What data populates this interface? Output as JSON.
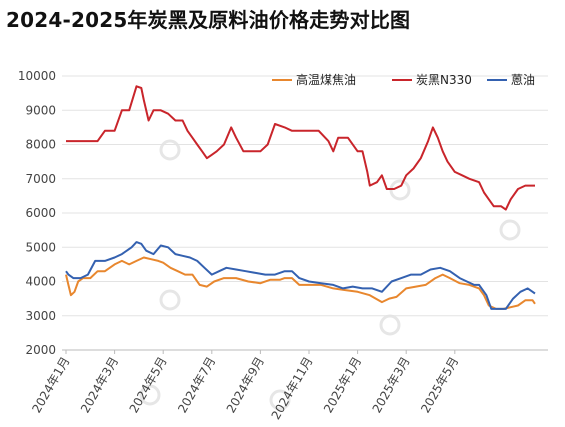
{
  "chart_data": {
    "type": "line",
    "title": "2024-2025年炭黑及原料油价格走势对比图",
    "xlabel": "",
    "ylabel": "",
    "ylim": [
      2000,
      10000
    ],
    "yticks": [
      "2000",
      "3000",
      "4000",
      "5000",
      "6000",
      "7000",
      "8000",
      "9000",
      "10000"
    ],
    "xticks": [
      "2024年1月",
      "2024年3月",
      "2024年5月",
      "2024年7月",
      "2024年9月",
      "2024年11月",
      "2025年1月",
      "2025年3月",
      "2025年5月"
    ],
    "grid": "horizontal",
    "legend_position": "top-right",
    "x_unit": "month index from 2024年1月",
    "series": [
      {
        "name": "高温煤焦油",
        "color": "#e8872e",
        "points": [
          [
            0,
            4200
          ],
          [
            0.1,
            3900
          ],
          [
            0.2,
            3600
          ],
          [
            0.35,
            3700
          ],
          [
            0.5,
            4000
          ],
          [
            0.7,
            4100
          ],
          [
            1.0,
            4100
          ],
          [
            1.3,
            4300
          ],
          [
            1.6,
            4300
          ],
          [
            2.0,
            4500
          ],
          [
            2.3,
            4600
          ],
          [
            2.6,
            4500
          ],
          [
            2.9,
            4600
          ],
          [
            3.2,
            4700
          ],
          [
            3.5,
            4650
          ],
          [
            3.8,
            4600
          ],
          [
            4.0,
            4550
          ],
          [
            4.3,
            4400
          ],
          [
            4.6,
            4300
          ],
          [
            4.9,
            4200
          ],
          [
            5.2,
            4200
          ],
          [
            5.5,
            3900
          ],
          [
            5.8,
            3850
          ],
          [
            6.1,
            4000
          ],
          [
            6.5,
            4100
          ],
          [
            7.0,
            4100
          ],
          [
            7.5,
            4000
          ],
          [
            8.0,
            3950
          ],
          [
            8.4,
            4050
          ],
          [
            8.8,
            4050
          ],
          [
            9.0,
            4100
          ],
          [
            9.3,
            4100
          ],
          [
            9.6,
            3900
          ],
          [
            10.0,
            3900
          ],
          [
            10.5,
            3900
          ],
          [
            11.0,
            3800
          ],
          [
            11.5,
            3750
          ],
          [
            12.0,
            3700
          ],
          [
            12.5,
            3600
          ],
          [
            13.0,
            3400
          ],
          [
            13.3,
            3500
          ],
          [
            13.6,
            3550
          ],
          [
            14.0,
            3800
          ],
          [
            14.4,
            3850
          ],
          [
            14.8,
            3900
          ],
          [
            15.2,
            4100
          ],
          [
            15.5,
            4200
          ],
          [
            15.8,
            4100
          ],
          [
            16.2,
            3950
          ],
          [
            16.6,
            3900
          ],
          [
            17.0,
            3800
          ],
          [
            17.2,
            3600
          ],
          [
            17.4,
            3300
          ],
          [
            17.7,
            3200
          ],
          [
            18.0,
            3200
          ],
          [
            18.3,
            3250
          ],
          [
            18.6,
            3300
          ],
          [
            18.9,
            3450
          ],
          [
            19.2,
            3450
          ],
          [
            19.3,
            3350
          ]
        ]
      },
      {
        "name": "炭黑N330",
        "color": "#c9252b",
        "points": [
          [
            0,
            8100
          ],
          [
            0.5,
            8100
          ],
          [
            1.0,
            8100
          ],
          [
            1.3,
            8100
          ],
          [
            1.6,
            8400
          ],
          [
            2.0,
            8400
          ],
          [
            2.3,
            9000
          ],
          [
            2.6,
            9000
          ],
          [
            2.9,
            9700
          ],
          [
            3.1,
            9650
          ],
          [
            3.2,
            9300
          ],
          [
            3.4,
            8700
          ],
          [
            3.6,
            9000
          ],
          [
            3.9,
            9000
          ],
          [
            4.2,
            8900
          ],
          [
            4.5,
            8700
          ],
          [
            4.8,
            8700
          ],
          [
            5.0,
            8400
          ],
          [
            5.2,
            8200
          ],
          [
            5.4,
            8000
          ],
          [
            5.6,
            7800
          ],
          [
            5.8,
            7600
          ],
          [
            6.0,
            7700
          ],
          [
            6.2,
            7800
          ],
          [
            6.5,
            8000
          ],
          [
            6.8,
            8500
          ],
          [
            7.0,
            8200
          ],
          [
            7.3,
            7800
          ],
          [
            7.6,
            7800
          ],
          [
            8.0,
            7800
          ],
          [
            8.3,
            8000
          ],
          [
            8.6,
            8600
          ],
          [
            9.0,
            8500
          ],
          [
            9.3,
            8400
          ],
          [
            9.6,
            8400
          ],
          [
            10.0,
            8400
          ],
          [
            10.4,
            8400
          ],
          [
            10.8,
            8100
          ],
          [
            11.0,
            7800
          ],
          [
            11.2,
            8200
          ],
          [
            11.6,
            8200
          ],
          [
            12.0,
            7800
          ],
          [
            12.2,
            7800
          ],
          [
            12.4,
            7200
          ],
          [
            12.5,
            6800
          ],
          [
            12.8,
            6900
          ],
          [
            13.0,
            7100
          ],
          [
            13.2,
            6700
          ],
          [
            13.5,
            6700
          ],
          [
            13.8,
            6800
          ],
          [
            14.0,
            7100
          ],
          [
            14.3,
            7300
          ],
          [
            14.6,
            7600
          ],
          [
            14.9,
            8100
          ],
          [
            15.1,
            8500
          ],
          [
            15.3,
            8200
          ],
          [
            15.5,
            7800
          ],
          [
            15.7,
            7500
          ],
          [
            16.0,
            7200
          ],
          [
            16.3,
            7100
          ],
          [
            16.6,
            7000
          ],
          [
            17.0,
            6900
          ],
          [
            17.2,
            6600
          ],
          [
            17.4,
            6400
          ],
          [
            17.6,
            6200
          ],
          [
            17.9,
            6200
          ],
          [
            18.1,
            6100
          ],
          [
            18.3,
            6400
          ],
          [
            18.6,
            6700
          ],
          [
            18.9,
            6800
          ],
          [
            19.3,
            6800
          ]
        ]
      },
      {
        "name": "蒽油",
        "color": "#3461b0",
        "points": [
          [
            0,
            4300
          ],
          [
            0.1,
            4200
          ],
          [
            0.3,
            4100
          ],
          [
            0.6,
            4100
          ],
          [
            0.9,
            4200
          ],
          [
            1.2,
            4600
          ],
          [
            1.6,
            4600
          ],
          [
            2.0,
            4700
          ],
          [
            2.3,
            4800
          ],
          [
            2.7,
            5000
          ],
          [
            2.9,
            5150
          ],
          [
            3.1,
            5100
          ],
          [
            3.3,
            4900
          ],
          [
            3.6,
            4800
          ],
          [
            3.9,
            5050
          ],
          [
            4.2,
            5000
          ],
          [
            4.5,
            4800
          ],
          [
            4.8,
            4750
          ],
          [
            5.1,
            4700
          ],
          [
            5.4,
            4600
          ],
          [
            5.7,
            4400
          ],
          [
            6.0,
            4200
          ],
          [
            6.3,
            4300
          ],
          [
            6.6,
            4400
          ],
          [
            7.0,
            4350
          ],
          [
            7.4,
            4300
          ],
          [
            7.8,
            4250
          ],
          [
            8.2,
            4200
          ],
          [
            8.6,
            4200
          ],
          [
            9.0,
            4300
          ],
          [
            9.3,
            4300
          ],
          [
            9.6,
            4100
          ],
          [
            10.0,
            4000
          ],
          [
            10.5,
            3950
          ],
          [
            11.0,
            3900
          ],
          [
            11.4,
            3800
          ],
          [
            11.8,
            3850
          ],
          [
            12.2,
            3800
          ],
          [
            12.6,
            3800
          ],
          [
            13.0,
            3700
          ],
          [
            13.4,
            4000
          ],
          [
            13.8,
            4100
          ],
          [
            14.2,
            4200
          ],
          [
            14.6,
            4200
          ],
          [
            15.0,
            4350
          ],
          [
            15.4,
            4400
          ],
          [
            15.8,
            4300
          ],
          [
            16.2,
            4100
          ],
          [
            16.5,
            4000
          ],
          [
            16.8,
            3900
          ],
          [
            17.0,
            3900
          ],
          [
            17.3,
            3600
          ],
          [
            17.5,
            3200
          ],
          [
            17.8,
            3200
          ],
          [
            18.1,
            3200
          ],
          [
            18.4,
            3500
          ],
          [
            18.7,
            3700
          ],
          [
            19.0,
            3800
          ],
          [
            19.2,
            3700
          ],
          [
            19.3,
            3650
          ]
        ]
      }
    ]
  }
}
